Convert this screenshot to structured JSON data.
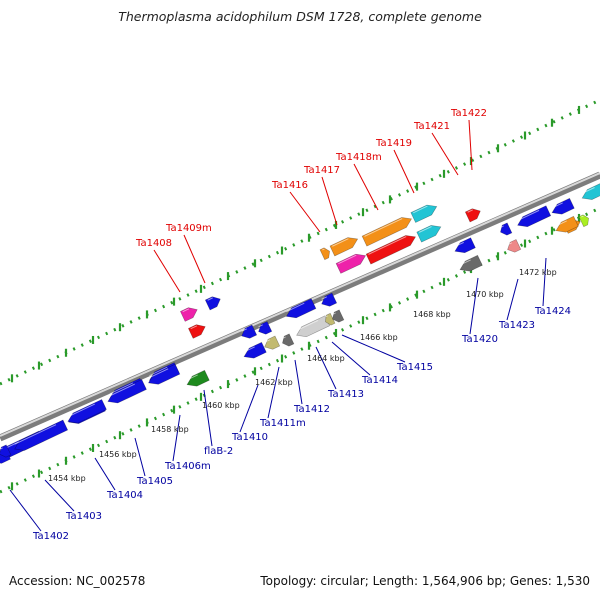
{
  "title": "Thermoplasma acidophilum DSM 1728, complete genome",
  "accession": "Accession: NC_002578",
  "topology": "Topology: circular; Length: 1,564,906 bp; Genes: 1,530",
  "colors": {
    "blue": "#1010e0",
    "red": "#ee1111",
    "magenta": "#ee22aa",
    "orange": "#f39018",
    "cyan": "#22c4d4",
    "gray": "#6a6a6a",
    "lightgray": "#cfcfcf",
    "olive": "#c2ba70",
    "green": "#1e8a1e",
    "pink": "#ee8888",
    "lime": "#aaee22",
    "backbone": "#8a8a8a",
    "ticks": "#2a9a2a",
    "label_red": "#e00000",
    "label_blue": "#0000a0"
  },
  "scale_labels": [
    "1454 kbp",
    "1456 kbp",
    "1458 kbp",
    "1460 kbp",
    "1462 kbp",
    "1464 kbp",
    "1466 kbp",
    "1468 kbp",
    "1470 kbp",
    "1472 kbp"
  ],
  "forward_genes": [
    {
      "name": "Ta1408",
      "color": "magenta"
    },
    {
      "name": "Ta1409m",
      "color": "red"
    },
    {
      "name": "Ta1416",
      "color": "orange"
    },
    {
      "name": "Ta1417",
      "color": "magenta"
    },
    {
      "name": "Ta1418m",
      "color": "red"
    },
    {
      "name": "Ta1419",
      "color": "orange"
    },
    {
      "name": "Ta1421",
      "color": "cyan"
    },
    {
      "name": "Ta1422",
      "color": "red"
    }
  ],
  "reverse_genes": [
    {
      "name": "Ta1402",
      "color": "blue"
    },
    {
      "name": "Ta1403",
      "color": "blue"
    },
    {
      "name": "Ta1404",
      "color": "blue"
    },
    {
      "name": "Ta1405",
      "color": "blue"
    },
    {
      "name": "Ta1406m",
      "color": "blue"
    },
    {
      "name": "flaB-2",
      "color": "green"
    },
    {
      "name": "Ta1410",
      "color": "blue"
    },
    {
      "name": "Ta1411m",
      "color": "olive"
    },
    {
      "name": "Ta1412",
      "color": "gray"
    },
    {
      "name": "Ta1413",
      "color": "lightgray"
    },
    {
      "name": "Ta1414",
      "color": "olive"
    },
    {
      "name": "Ta1415",
      "color": "gray"
    },
    {
      "name": "Ta1420",
      "color": "gray"
    },
    {
      "name": "Ta1423",
      "color": "pink"
    },
    {
      "name": "Ta1424",
      "color": "orange"
    }
  ]
}
